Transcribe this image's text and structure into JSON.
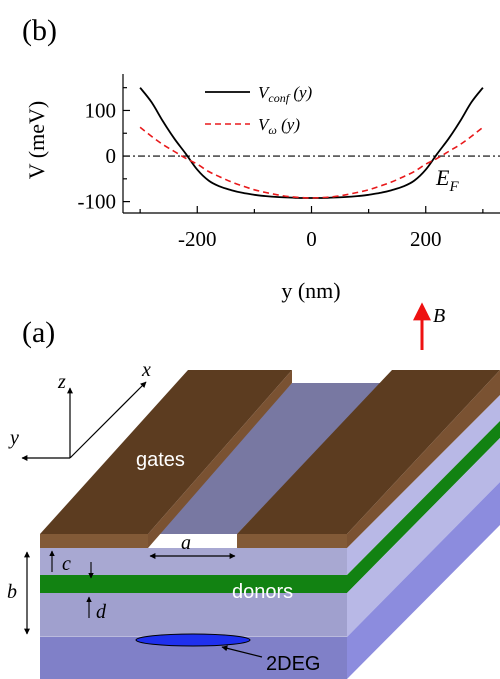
{
  "panel_b": {
    "label": "(b)",
    "chart_data": {
      "type": "line",
      "xlabel": "y (nm)",
      "ylabel": "V (meV)",
      "xlim": [
        -330,
        330
      ],
      "ylim": [
        -125,
        180
      ],
      "x_ticks": [
        -200,
        0,
        200
      ],
      "x_tick_labels": [
        "-200",
        "0",
        "200"
      ],
      "y_ticks": [
        -100,
        0,
        100
      ],
      "y_tick_labels": [
        "-100",
        "0",
        "100"
      ],
      "legend_position": "top-center",
      "annotations": [
        {
          "text": "E",
          "subscript": "F",
          "x": 300,
          "y": -40
        }
      ],
      "reference_line": {
        "y": 0,
        "style": "dash-dot"
      },
      "series": [
        {
          "name": "V",
          "name_sub": "conf",
          "name_tail": " (y)",
          "color": "#000000",
          "style": "solid",
          "x": [
            -300,
            -280,
            -260,
            -240,
            -220,
            -200,
            -180,
            -160,
            -140,
            -120,
            -100,
            -80,
            -60,
            -40,
            -20,
            0,
            20,
            40,
            60,
            80,
            100,
            120,
            140,
            160,
            180,
            200,
            220,
            240,
            260,
            280,
            300
          ],
          "y": [
            150,
            118,
            76,
            38,
            5,
            -30,
            -54,
            -67,
            -75,
            -81,
            -85,
            -88,
            -90,
            -91,
            -92,
            -92,
            -92,
            -91,
            -90,
            -88,
            -85,
            -81,
            -75,
            -67,
            -54,
            -30,
            5,
            38,
            76,
            118,
            150
          ]
        },
        {
          "name": "V",
          "name_sub": "ω",
          "name_tail": " (y)",
          "color": "#e8191b",
          "style": "dashed",
          "x": [
            -300,
            -280,
            -260,
            -240,
            -220,
            -200,
            -180,
            -160,
            -140,
            -120,
            -100,
            -80,
            -60,
            -40,
            -20,
            0,
            20,
            40,
            60,
            80,
            100,
            120,
            140,
            160,
            180,
            200,
            220,
            240,
            260,
            280,
            300
          ],
          "y": [
            63,
            43,
            25,
            10,
            -5,
            -18,
            -34,
            -46,
            -57,
            -66,
            -74,
            -80,
            -85,
            -89,
            -91,
            -92,
            -91,
            -89,
            -85,
            -80,
            -74,
            -66,
            -57,
            -46,
            -34,
            -18,
            -5,
            10,
            25,
            43,
            63
          ]
        }
      ]
    }
  },
  "panel_a": {
    "label": "(a)",
    "field_label": "B",
    "axes": {
      "x": "x",
      "y": "y",
      "z": "z"
    },
    "gates_label": "gates",
    "donors_label": "donors",
    "twodeg_label": "2DEG",
    "dims": {
      "a": "a",
      "b": "b",
      "c": "c",
      "d": "d"
    },
    "colors": {
      "gate_top": "#5c3c20",
      "gate_front": "#825a37",
      "gate_side": "#7a5232",
      "layer_light": "#a8a8d2",
      "layer_mid": "#9f9fce",
      "layer_bottom": "#8080c8",
      "side_light": "#b8b8e6",
      "side_bottom": "#8c8cde",
      "donor": "#128212",
      "groove": "#7878a2",
      "twodeg": "#1f30ee",
      "arrow_b": "#ee1111"
    }
  }
}
